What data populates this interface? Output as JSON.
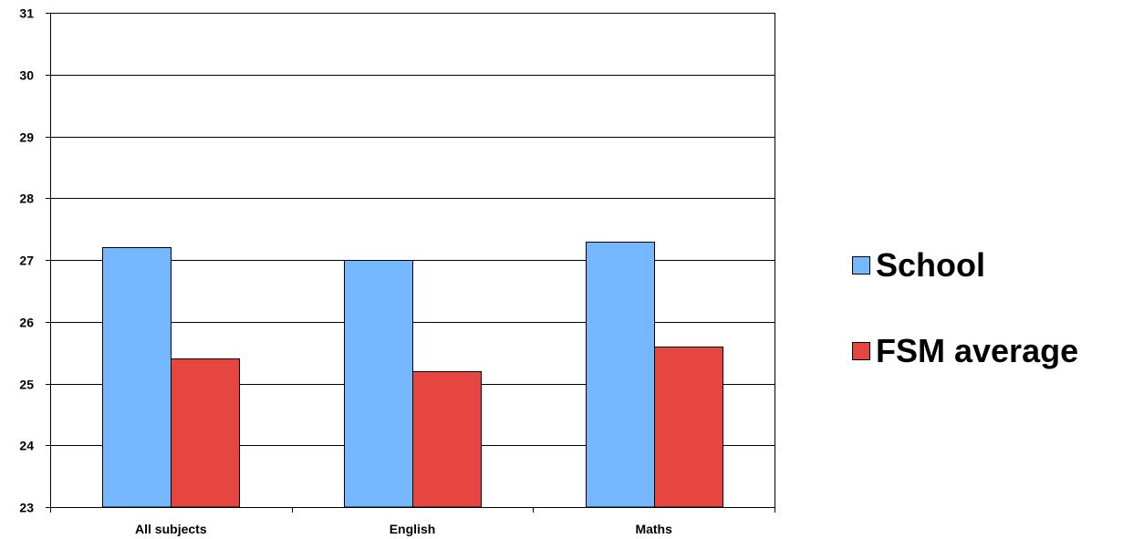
{
  "chart_data": {
    "type": "bar",
    "categories": [
      "All subjects",
      "English",
      "Maths"
    ],
    "series": [
      {
        "name": "School",
        "values": [
          27.2,
          27.0,
          27.3
        ],
        "color": "#75b8ff"
      },
      {
        "name": "FSM average",
        "values": [
          25.4,
          25.2,
          25.6
        ],
        "color": "#e64640"
      }
    ],
    "ylim": [
      23,
      31
    ],
    "yticks": [
      23,
      24,
      25,
      26,
      27,
      28,
      29,
      30,
      31
    ],
    "grid": true,
    "legend_position": "right"
  }
}
